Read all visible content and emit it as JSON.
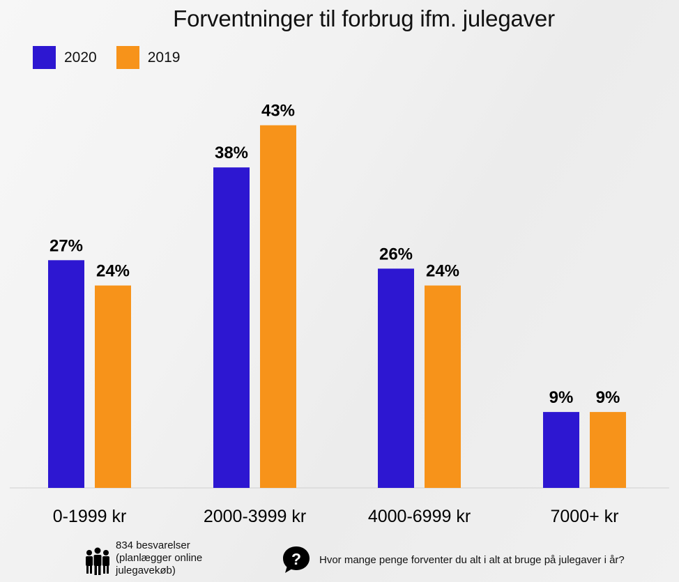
{
  "title": "Forventninger til forbrug ifm. julegaver",
  "colors": {
    "y2020": "#2d17d1",
    "y2019": "#f7931a"
  },
  "legend": [
    {
      "label": "2020",
      "color": "#2d17d1"
    },
    {
      "label": "2019",
      "color": "#f7931a"
    }
  ],
  "chart_data": {
    "type": "bar",
    "title": "Forventninger til forbrug ifm. julegaver",
    "categories": [
      "0-1999 kr",
      "2000-3999 kr",
      "4000-6999 kr",
      "7000+ kr"
    ],
    "series": [
      {
        "name": "2020",
        "values": [
          27,
          38,
          26,
          9
        ],
        "labels": [
          "27%",
          "38%",
          "26%",
          "9%"
        ]
      },
      {
        "name": "2019",
        "values": [
          24,
          43,
          24,
          9
        ],
        "labels": [
          "24%",
          "43%",
          "24%",
          "9%"
        ]
      }
    ],
    "unit": "%",
    "ylim": [
      0,
      50
    ],
    "grid": false,
    "legend_position": "top-left"
  },
  "footer": {
    "responses_line1": "834 besvarelser",
    "responses_line2": "(planlægger online",
    "responses_line3": "julegavekøb)",
    "question": "Hvor mange penge forventer du alt i alt at bruge på julegaver i år?",
    "people_icon": "people-group-icon",
    "question_icon": "question-bubble-icon"
  }
}
